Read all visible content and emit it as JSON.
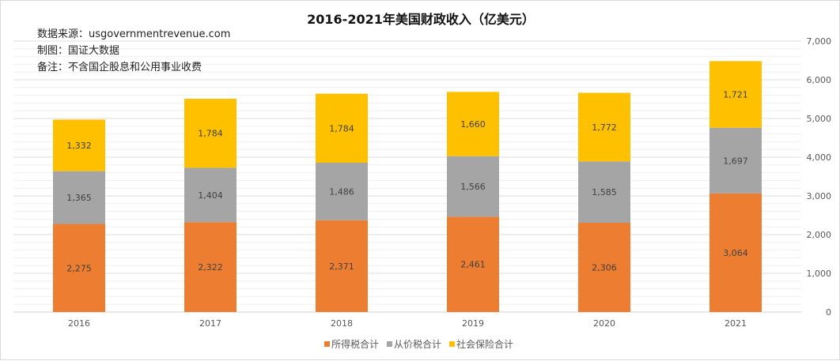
{
  "notes": {
    "source": "数据来源：usgovernmentrevenue.com",
    "author": "制图：国证大数据",
    "remark": "备注：不含国企股息和公用事业收费"
  },
  "chart_data": {
    "type": "bar",
    "stacked": true,
    "title": "2016-2021年美国财政收入（亿美元）",
    "categories": [
      "2016",
      "2017",
      "2018",
      "2019",
      "2020",
      "2021"
    ],
    "series": [
      {
        "name": "所得税合计",
        "color": "#ED7D31",
        "values": [
          2275,
          2322,
          2371,
          2461,
          2306,
          3064
        ],
        "labels": [
          "2,275",
          "2,322",
          "2,371",
          "2,461",
          "2,306",
          "3,064"
        ]
      },
      {
        "name": "从价税合计",
        "color": "#A5A5A5",
        "values": [
          1365,
          1404,
          1486,
          1566,
          1585,
          1697
        ],
        "labels": [
          "1,365",
          "1,404",
          "1,486",
          "1,566",
          "1,585",
          "1,697"
        ]
      },
      {
        "name": "社会保险合计",
        "color": "#FFC000",
        "values": [
          1332,
          1784,
          1784,
          1660,
          1772,
          1721
        ],
        "labels": [
          "1,332",
          "1,784",
          "1,784",
          "1,660",
          "1,772",
          "1,721"
        ]
      }
    ],
    "yaxis": {
      "position": "right",
      "ylim": [
        0,
        7000
      ],
      "major_step": 1000,
      "minor_step": 200,
      "tick_labels": [
        "0",
        "1,000",
        "2,000",
        "3,000",
        "4,000",
        "5,000",
        "6,000",
        "7,000"
      ]
    },
    "grid": true,
    "legend": "bottom"
  }
}
